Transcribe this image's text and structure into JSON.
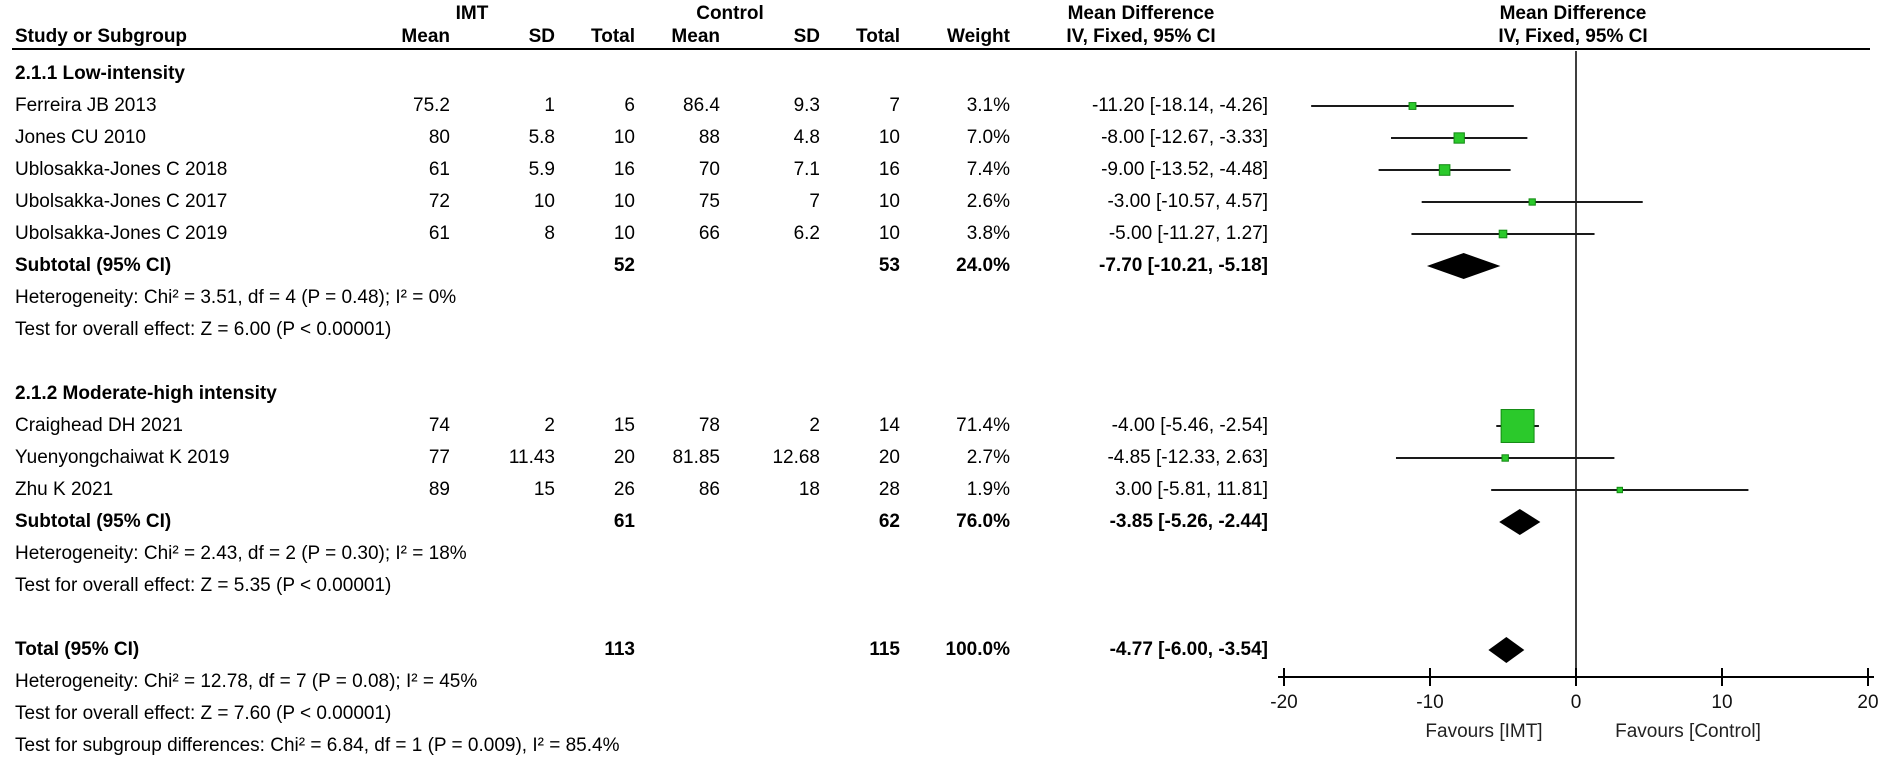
{
  "header": {
    "group1_label": "IMT",
    "group2_label": "Control",
    "md_label_1": "Mean Difference",
    "md_label_2": "Mean Difference",
    "method_label_1": "IV, Fixed, 95% CI",
    "method_label_2": "IV, Fixed, 95% CI",
    "columns": [
      "Study or Subgroup",
      "Mean",
      "SD",
      "Total",
      "Mean",
      "SD",
      "Total",
      "Weight"
    ]
  },
  "chart_data": {
    "type": "table",
    "subtype": "forest-plot-meta-analysis",
    "effect_measure": "Mean Difference",
    "method": "IV, Fixed, 95% CI",
    "axis": {
      "min": -20,
      "max": 20,
      "ticks": [
        -20,
        -10,
        0,
        10,
        20
      ],
      "favours_left": "Favours [IMT]",
      "favours_right": "Favours [Control]"
    },
    "subgroups": [
      {
        "title": "2.1.1 Low-intensity",
        "studies": [
          {
            "study": "Ferreira JB 2013",
            "mean1": "75.2",
            "sd1": "1",
            "total1": "6",
            "mean2": "86.4",
            "sd2": "9.3",
            "total2": "7",
            "weight": "3.1%",
            "weight_pct": 3.1,
            "ci_text": "-11.20 [-18.14, -4.26]",
            "md": -11.2,
            "lo": -18.14,
            "hi": -4.26
          },
          {
            "study": "Jones CU 2010",
            "mean1": "80",
            "sd1": "5.8",
            "total1": "10",
            "mean2": "88",
            "sd2": "4.8",
            "total2": "10",
            "weight": "7.0%",
            "weight_pct": 7.0,
            "ci_text": "-8.00 [-12.67, -3.33]",
            "md": -8.0,
            "lo": -12.67,
            "hi": -3.33
          },
          {
            "study": "Ublosakka-Jones C 2018",
            "mean1": "61",
            "sd1": "5.9",
            "total1": "16",
            "mean2": "70",
            "sd2": "7.1",
            "total2": "16",
            "weight": "7.4%",
            "weight_pct": 7.4,
            "ci_text": "-9.00 [-13.52, -4.48]",
            "md": -9.0,
            "lo": -13.52,
            "hi": -4.48
          },
          {
            "study": "Ubolsakka-Jones C 2017",
            "mean1": "72",
            "sd1": "10",
            "total1": "10",
            "mean2": "75",
            "sd2": "7",
            "total2": "10",
            "weight": "2.6%",
            "weight_pct": 2.6,
            "ci_text": "-3.00 [-10.57, 4.57]",
            "md": -3.0,
            "lo": -10.57,
            "hi": 4.57
          },
          {
            "study": "Ubolsakka-Jones C 2019",
            "mean1": "61",
            "sd1": "8",
            "total1": "10",
            "mean2": "66",
            "sd2": "6.2",
            "total2": "10",
            "weight": "3.8%",
            "weight_pct": 3.8,
            "ci_text": "-5.00 [-11.27, 1.27]",
            "md": -5.0,
            "lo": -11.27,
            "hi": 1.27
          }
        ],
        "subtotal": {
          "label": "Subtotal (95% CI)",
          "total1": "52",
          "total2": "53",
          "weight": "24.0%",
          "ci_text": "-7.70 [-10.21, -5.18]",
          "md": -7.7,
          "lo": -10.21,
          "hi": -5.18
        },
        "heterogeneity": "Heterogeneity: Chi² = 3.51, df = 4 (P = 0.48); I² = 0%",
        "overall_effect": "Test for overall effect: Z = 6.00 (P < 0.00001)"
      },
      {
        "title": "2.1.2 Moderate-high intensity",
        "studies": [
          {
            "study": "Craighead DH 2021",
            "mean1": "74",
            "sd1": "2",
            "total1": "15",
            "mean2": "78",
            "sd2": "2",
            "total2": "14",
            "weight": "71.4%",
            "weight_pct": 71.4,
            "ci_text": "-4.00 [-5.46, -2.54]",
            "md": -4.0,
            "lo": -5.46,
            "hi": -2.54
          },
          {
            "study": "Yuenyongchaiwat K 2019",
            "mean1": "77",
            "sd1": "11.43",
            "total1": "20",
            "mean2": "81.85",
            "sd2": "12.68",
            "total2": "20",
            "weight": "2.7%",
            "weight_pct": 2.7,
            "ci_text": "-4.85 [-12.33, 2.63]",
            "md": -4.85,
            "lo": -12.33,
            "hi": 2.63
          },
          {
            "study": "Zhu K 2021",
            "mean1": "89",
            "sd1": "15",
            "total1": "26",
            "mean2": "86",
            "sd2": "18",
            "total2": "28",
            "weight": "1.9%",
            "weight_pct": 1.9,
            "ci_text": "3.00 [-5.81, 11.81]",
            "md": 3.0,
            "lo": -5.81,
            "hi": 11.81
          }
        ],
        "subtotal": {
          "label": "Subtotal (95% CI)",
          "total1": "61",
          "total2": "62",
          "weight": "76.0%",
          "ci_text": "-3.85 [-5.26, -2.44]",
          "md": -3.85,
          "lo": -5.26,
          "hi": -2.44
        },
        "heterogeneity": "Heterogeneity: Chi² = 2.43, df = 2 (P = 0.30); I² = 18%",
        "overall_effect": "Test for overall effect: Z = 5.35 (P < 0.00001)"
      }
    ],
    "total": {
      "label": "Total (95% CI)",
      "total1": "113",
      "total2": "115",
      "weight": "100.0%",
      "ci_text": "-4.77 [-6.00, -3.54]",
      "md": -4.77,
      "lo": -6.0,
      "hi": -3.54
    },
    "total_heterogeneity": "Heterogeneity: Chi² = 12.78, df = 7 (P = 0.08); I² = 45%",
    "total_overall_effect": "Test for overall effect: Z = 7.60 (P < 0.00001)",
    "subgroup_differences": "Test for subgroup differences: Chi² = 6.84, df = 1 (P = 0.009), I² = 85.4%"
  },
  "colors": {
    "marker_fill": "#2BC92B",
    "marker_border": "#128A12",
    "diamond": "#000000",
    "line": "#1a1a1a",
    "zero_line": "#3f3f3f",
    "axis": "#000000"
  }
}
